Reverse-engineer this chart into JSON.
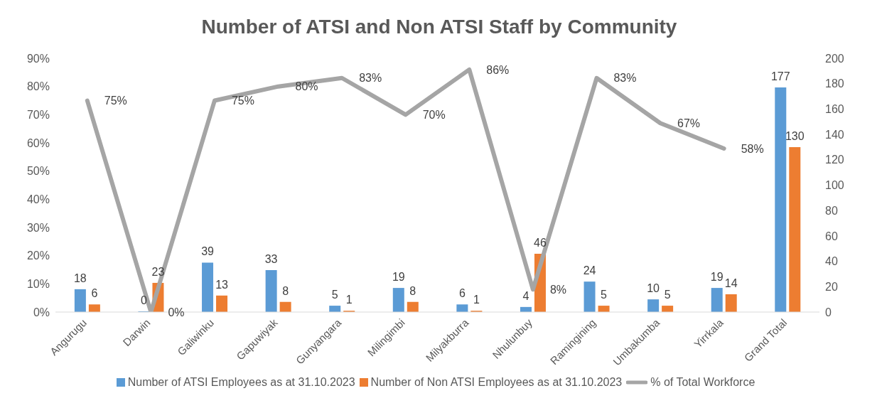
{
  "chart_data": {
    "type": "bar",
    "title": "Number of ATSI and Non ATSI Staff by Community",
    "categories": [
      "Angurugu",
      "Darwin",
      "Galiwinku",
      "Gapuwiyak",
      "Gunyangara",
      "Milingimbi",
      "Milyakburra",
      "Nhulunbuy",
      "Ramingining",
      "Umbakumba",
      "Yirrkala",
      "Grand Total"
    ],
    "series": [
      {
        "name": "Number of ATSI Employees as at 31.10.2023",
        "color": "#5b9bd5",
        "axis": "y2",
        "values": [
          18,
          0,
          39,
          33,
          5,
          19,
          6,
          4,
          24,
          10,
          19,
          177
        ],
        "value_labels": [
          "18",
          "0",
          "39",
          "33",
          "5",
          "19",
          "6",
          "4",
          "24",
          "10",
          "19",
          "177"
        ]
      },
      {
        "name": "Number of Non ATSI Employees as at 31.10.2023",
        "color": "#ed7d31",
        "axis": "y2",
        "values": [
          6,
          23,
          13,
          8,
          1,
          8,
          1,
          46,
          5,
          5,
          14,
          130
        ],
        "value_labels": [
          "6",
          "23",
          "13",
          "8",
          "1",
          "8",
          "1",
          "46",
          "5",
          "5",
          "14",
          "130"
        ]
      },
      {
        "name": "% of Total Workforce",
        "type": "line",
        "color": "#a5a5a5",
        "axis": "y",
        "values": [
          75,
          0,
          75,
          80,
          83,
          70,
          86,
          8,
          83,
          67,
          58,
          null
        ],
        "value_labels": [
          "75%",
          "0%",
          "75%",
          "80%",
          "83%",
          "70%",
          "86%",
          "8%",
          "83%",
          "67%",
          "58%",
          null
        ]
      }
    ],
    "ylim": [
      0,
      90
    ],
    "yticks": [
      {
        "value": 0,
        "label": "0%"
      },
      {
        "value": 10,
        "label": "10%"
      },
      {
        "value": 20,
        "label": "20%"
      },
      {
        "value": 30,
        "label": "30%"
      },
      {
        "value": 40,
        "label": "40%"
      },
      {
        "value": 50,
        "label": "50%"
      },
      {
        "value": 60,
        "label": "60%"
      },
      {
        "value": 70,
        "label": "70%"
      },
      {
        "value": 80,
        "label": "80%"
      },
      {
        "value": 90,
        "label": "90%"
      }
    ],
    "y2lim": [
      0,
      200
    ],
    "y2ticks": [
      0,
      20,
      40,
      60,
      80,
      100,
      120,
      140,
      160,
      180,
      200
    ],
    "legend": "bottom",
    "marker": "none",
    "line_style": "solid"
  }
}
